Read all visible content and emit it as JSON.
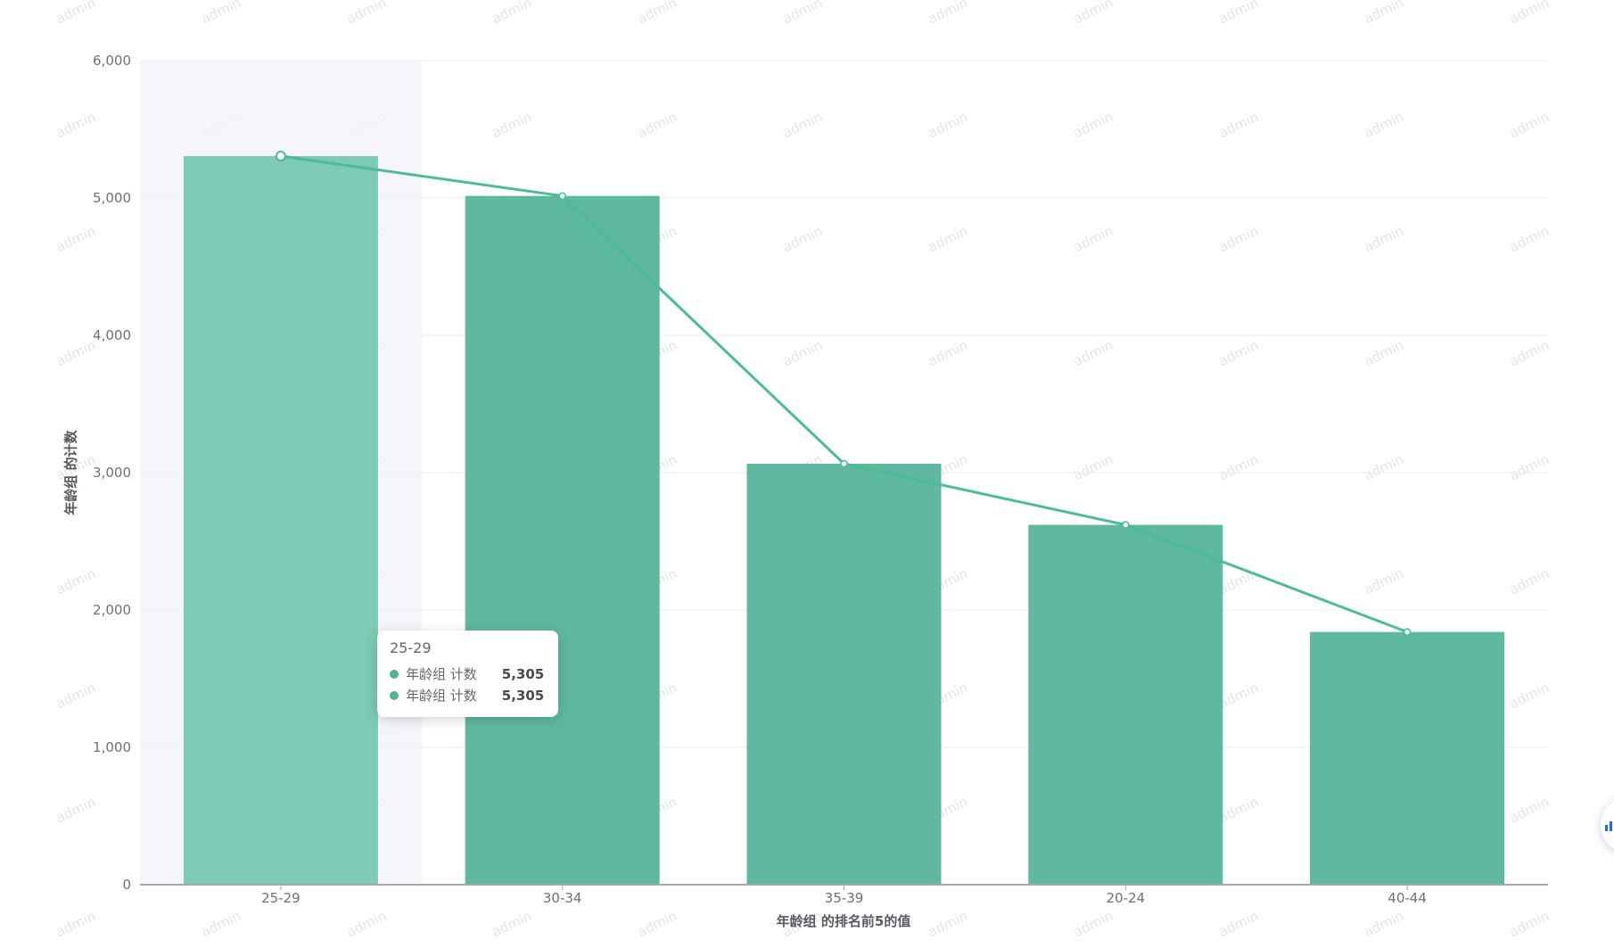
{
  "watermark": {
    "text": "admin"
  },
  "chart_data": {
    "type": "bar",
    "categories": [
      "25-29",
      "30-34",
      "35-39",
      "20-24",
      "40-44"
    ],
    "series": [
      {
        "name": "年龄组 计数",
        "type": "bar",
        "values": [
          5305,
          5015,
          3065,
          2620,
          1840
        ]
      },
      {
        "name": "年龄组 计数",
        "type": "line",
        "values": [
          5305,
          5015,
          3065,
          2620,
          1840
        ]
      }
    ],
    "title": "",
    "xlabel": "年龄组 的排名前5的值",
    "ylabel": "年龄组 的计数",
    "ylim": [
      0,
      6000
    ],
    "ytick_labels": [
      "0",
      "1,000",
      "2,000",
      "3,000",
      "4,000",
      "5,000",
      "6,000"
    ],
    "grid": true,
    "legend": "none",
    "highlighted_category": "25-29"
  },
  "tooltip": {
    "title": "25-29",
    "rows": [
      {
        "label": "年龄组 计数",
        "value": "5,305"
      },
      {
        "label": "年龄组 计数",
        "value": "5,305"
      }
    ]
  },
  "colors": {
    "bar": "#53b399",
    "bar_highlight": "#73c7ae",
    "line": "#4cbc97",
    "marker_fill": "#ffffff",
    "hover_band": "#f4f5f9",
    "gridline": "#ebedf2",
    "axis_line": "#a5a8ae",
    "tick_label": "#6e7079",
    "axis_title": "#565a61",
    "tooltip_value": "#454a52",
    "watermark": "#e2e4e9",
    "fab_icon": "#2166f3"
  }
}
